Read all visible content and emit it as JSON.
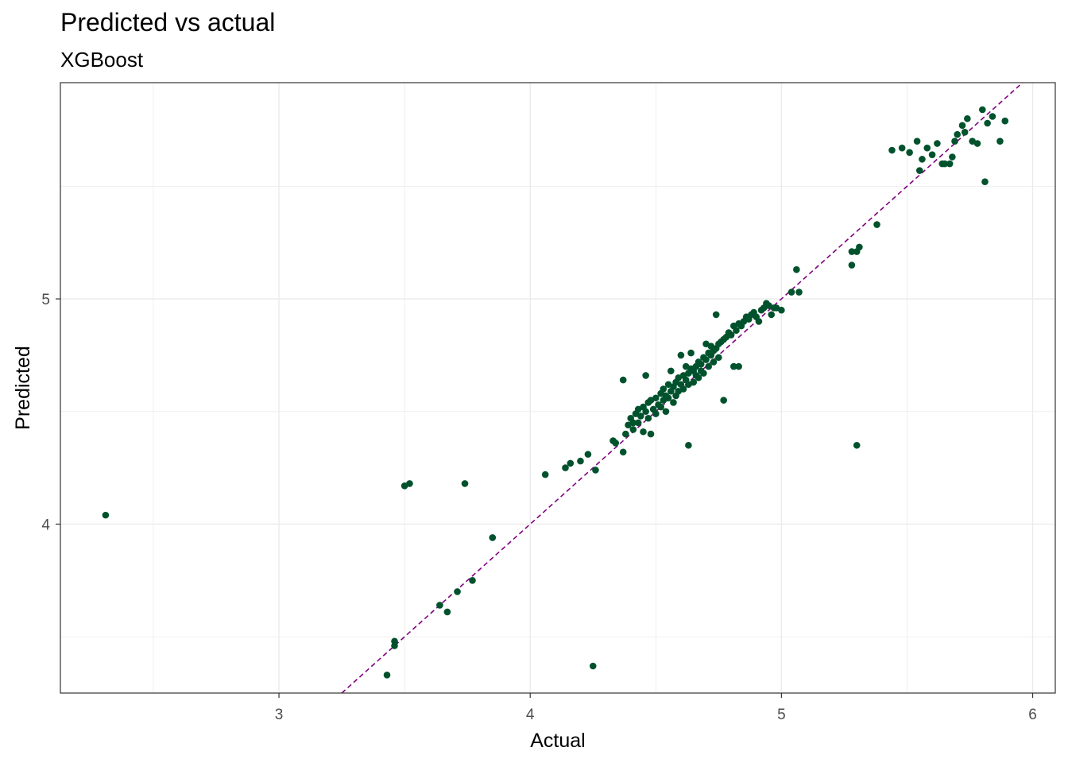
{
  "chart_data": {
    "type": "scatter",
    "title": "Predicted vs actual",
    "subtitle": "XGBoost",
    "xlabel": "Actual",
    "ylabel": "Predicted",
    "xlim": [
      2.13,
      6.09
    ],
    "ylim": [
      3.25,
      5.96
    ],
    "xticks": [
      3,
      4,
      5,
      6
    ],
    "yticks": [
      4,
      5
    ],
    "grid": true,
    "point_color": "#00522d",
    "reference_line": {
      "type": "y=x",
      "style": "dashed",
      "color": "#800080"
    },
    "points": [
      [
        2.31,
        4.04
      ],
      [
        3.43,
        3.33
      ],
      [
        3.46,
        3.46
      ],
      [
        3.46,
        3.48
      ],
      [
        3.5,
        4.17
      ],
      [
        3.52,
        4.18
      ],
      [
        3.64,
        3.64
      ],
      [
        3.67,
        3.61
      ],
      [
        3.71,
        3.7
      ],
      [
        3.74,
        4.18
      ],
      [
        3.77,
        3.75
      ],
      [
        3.85,
        3.94
      ],
      [
        4.06,
        4.22
      ],
      [
        4.14,
        4.25
      ],
      [
        4.16,
        4.27
      ],
      [
        4.2,
        4.28
      ],
      [
        4.23,
        4.31
      ],
      [
        4.25,
        3.37
      ],
      [
        4.26,
        4.24
      ],
      [
        4.33,
        4.37
      ],
      [
        4.34,
        4.36
      ],
      [
        4.37,
        4.64
      ],
      [
        4.37,
        4.32
      ],
      [
        4.38,
        4.4
      ],
      [
        4.39,
        4.44
      ],
      [
        4.4,
        4.47
      ],
      [
        4.41,
        4.45
      ],
      [
        4.41,
        4.42
      ],
      [
        4.42,
        4.49
      ],
      [
        4.43,
        4.51
      ],
      [
        4.43,
        4.45
      ],
      [
        4.44,
        4.48
      ],
      [
        4.45,
        4.52
      ],
      [
        4.45,
        4.41
      ],
      [
        4.46,
        4.5
      ],
      [
        4.46,
        4.66
      ],
      [
        4.47,
        4.54
      ],
      [
        4.47,
        4.47
      ],
      [
        4.48,
        4.55
      ],
      [
        4.48,
        4.4
      ],
      [
        4.49,
        4.51
      ],
      [
        4.5,
        4.56
      ],
      [
        4.5,
        4.49
      ],
      [
        4.51,
        4.53
      ],
      [
        4.52,
        4.58
      ],
      [
        4.52,
        4.52
      ],
      [
        4.53,
        4.6
      ],
      [
        4.53,
        4.55
      ],
      [
        4.54,
        4.57
      ],
      [
        4.54,
        4.5
      ],
      [
        4.55,
        4.62
      ],
      [
        4.55,
        4.56
      ],
      [
        4.56,
        4.59
      ],
      [
        4.56,
        4.68
      ],
      [
        4.57,
        4.61
      ],
      [
        4.57,
        4.54
      ],
      [
        4.58,
        4.63
      ],
      [
        4.58,
        4.57
      ],
      [
        4.59,
        4.65
      ],
      [
        4.59,
        4.59
      ],
      [
        4.6,
        4.62
      ],
      [
        4.6,
        4.75
      ],
      [
        4.61,
        4.66
      ],
      [
        4.61,
        4.6
      ],
      [
        4.62,
        4.64
      ],
      [
        4.62,
        4.7
      ],
      [
        4.63,
        4.67
      ],
      [
        4.63,
        4.35
      ],
      [
        4.63,
        4.62
      ],
      [
        4.64,
        4.69
      ],
      [
        4.64,
        4.76
      ],
      [
        4.65,
        4.68
      ],
      [
        4.65,
        4.63
      ],
      [
        4.66,
        4.7
      ],
      [
        4.66,
        4.66
      ],
      [
        4.67,
        4.72
      ],
      [
        4.67,
        4.65
      ],
      [
        4.68,
        4.71
      ],
      [
        4.68,
        4.68
      ],
      [
        4.69,
        4.74
      ],
      [
        4.69,
        4.67
      ],
      [
        4.7,
        4.73
      ],
      [
        4.7,
        4.8
      ],
      [
        4.71,
        4.76
      ],
      [
        4.71,
        4.7
      ],
      [
        4.72,
        4.75
      ],
      [
        4.72,
        4.79
      ],
      [
        4.73,
        4.77
      ],
      [
        4.73,
        4.72
      ],
      [
        4.74,
        4.78
      ],
      [
        4.74,
        4.93
      ],
      [
        4.75,
        4.8
      ],
      [
        4.75,
        4.74
      ],
      [
        4.76,
        4.81
      ],
      [
        4.77,
        4.82
      ],
      [
        4.77,
        4.55
      ],
      [
        4.78,
        4.83
      ],
      [
        4.79,
        4.85
      ],
      [
        4.8,
        4.84
      ],
      [
        4.81,
        4.88
      ],
      [
        4.81,
        4.7
      ],
      [
        4.82,
        4.86
      ],
      [
        4.83,
        4.89
      ],
      [
        4.83,
        4.7
      ],
      [
        4.84,
        4.88
      ],
      [
        4.85,
        4.9
      ],
      [
        4.86,
        4.92
      ],
      [
        4.87,
        4.91
      ],
      [
        4.88,
        4.93
      ],
      [
        4.89,
        4.94
      ],
      [
        4.9,
        4.92
      ],
      [
        4.91,
        4.9
      ],
      [
        4.92,
        4.95
      ],
      [
        4.93,
        4.96
      ],
      [
        4.94,
        4.98
      ],
      [
        4.95,
        4.97
      ],
      [
        4.96,
        4.93
      ],
      [
        4.97,
        4.96
      ],
      [
        4.98,
        4.96
      ],
      [
        5.0,
        4.95
      ],
      [
        5.04,
        5.03
      ],
      [
        5.06,
        5.13
      ],
      [
        5.07,
        5.03
      ],
      [
        5.28,
        5.21
      ],
      [
        5.28,
        5.15
      ],
      [
        5.3,
        5.21
      ],
      [
        5.3,
        4.35
      ],
      [
        5.31,
        5.23
      ],
      [
        5.38,
        5.33
      ],
      [
        5.44,
        5.66
      ],
      [
        5.48,
        5.67
      ],
      [
        5.51,
        5.65
      ],
      [
        5.54,
        5.7
      ],
      [
        5.55,
        5.57
      ],
      [
        5.56,
        5.62
      ],
      [
        5.58,
        5.67
      ],
      [
        5.6,
        5.64
      ],
      [
        5.62,
        5.69
      ],
      [
        5.64,
        5.6
      ],
      [
        5.65,
        5.6
      ],
      [
        5.67,
        5.6
      ],
      [
        5.68,
        5.63
      ],
      [
        5.69,
        5.7
      ],
      [
        5.7,
        5.73
      ],
      [
        5.72,
        5.77
      ],
      [
        5.73,
        5.74
      ],
      [
        5.74,
        5.8
      ],
      [
        5.76,
        5.7
      ],
      [
        5.78,
        5.69
      ],
      [
        5.8,
        5.84
      ],
      [
        5.81,
        5.52
      ],
      [
        5.82,
        5.78
      ],
      [
        5.84,
        5.81
      ],
      [
        5.87,
        5.7
      ],
      [
        5.89,
        5.79
      ]
    ]
  }
}
